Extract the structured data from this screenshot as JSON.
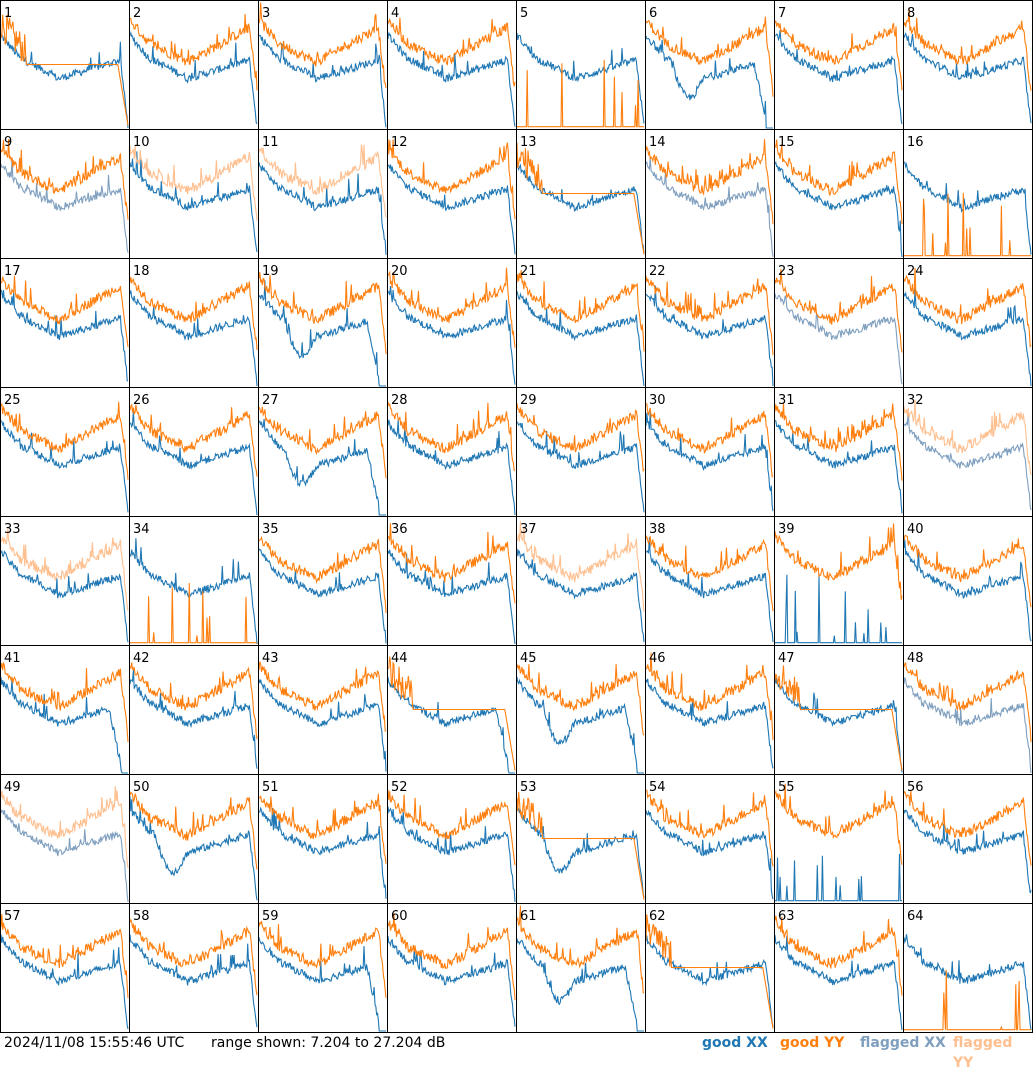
{
  "chart_data": {
    "type": "line",
    "panel_labels": [
      "1",
      "2",
      "3",
      "4",
      "5",
      "6",
      "7",
      "8",
      "9",
      "10",
      "11",
      "12",
      "13",
      "14",
      "15",
      "16",
      "17",
      "18",
      "19",
      "20",
      "21",
      "22",
      "23",
      "24",
      "25",
      "26",
      "27",
      "28",
      "29",
      "30",
      "31",
      "32",
      "33",
      "34",
      "35",
      "36",
      "37",
      "38",
      "39",
      "40",
      "41",
      "42",
      "43",
      "44",
      "45",
      "46",
      "47",
      "48",
      "49",
      "50",
      "51",
      "52",
      "53",
      "54",
      "55",
      "56",
      "57",
      "58",
      "59",
      "60",
      "61",
      "62",
      "63",
      "64"
    ],
    "y_range_db": [
      7.204,
      27.204
    ],
    "series": [
      {
        "name": "good XX",
        "color": "#1f77b4"
      },
      {
        "name": "good YY",
        "color": "#ff7f0e"
      },
      {
        "name": "flagged XX",
        "color": "#7f9fbf"
      },
      {
        "name": "flagged YY",
        "color": "#ffbf8f"
      }
    ]
  },
  "footer": {
    "timestamp": "2024/11/08 15:55:46 UTC",
    "range_text": "range shown: 7.204 to 27.204 dB",
    "legend": {
      "good_xx": "good XX",
      "good_yy": "good YY",
      "flagged_xx": "flagged XX",
      "flagged_yy": "flagged YY"
    }
  }
}
